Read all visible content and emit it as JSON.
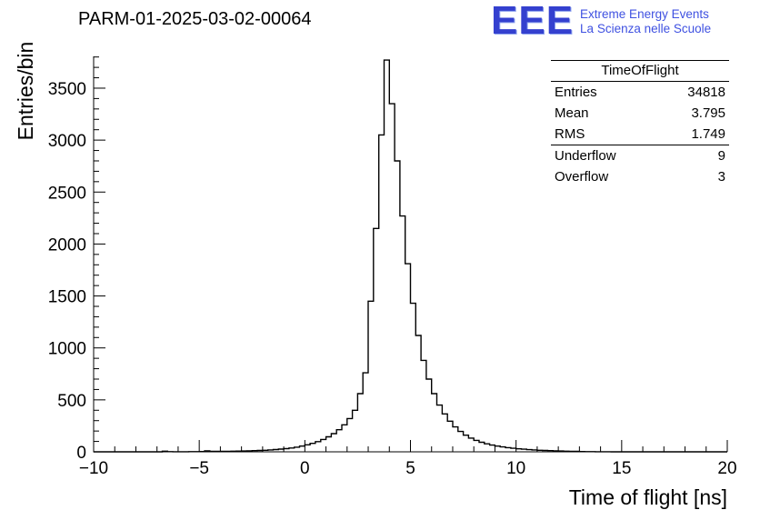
{
  "header": {
    "title": "PARM-01-2025-03-02-00064"
  },
  "logo": {
    "text": "EEE",
    "line1": "Extreme Energy Events",
    "line2": "La Scienza nelle Scuole",
    "color": "#3f51e1"
  },
  "stats": {
    "title": "TimeOfFlight",
    "rows": [
      {
        "label": "Entries",
        "value": "34818"
      },
      {
        "label": "Mean",
        "value": "3.795"
      },
      {
        "label": "RMS",
        "value": "1.749"
      },
      {
        "label": "Underflow",
        "value": "9"
      },
      {
        "label": "Overflow",
        "value": "3"
      }
    ]
  },
  "chart_data": {
    "type": "bar",
    "style": "step-histogram",
    "title": "PARM-01-2025-03-02-00064",
    "xlabel": "Time of flight [ns]",
    "ylabel": "Entries/bin",
    "xlim": [
      -10,
      20
    ],
    "ylim": [
      0,
      3806
    ],
    "bin_width": 0.25,
    "grid": false,
    "line_color": "#000000",
    "x_ticks": {
      "values": [
        -10,
        -5,
        0,
        5,
        10,
        15,
        20
      ],
      "labels": [
        "−10",
        "−5",
        "0",
        "5",
        "10",
        "15",
        "20"
      ]
    },
    "y_ticks": {
      "values": [
        0,
        500,
        1000,
        1500,
        2000,
        2500,
        3000,
        3500
      ],
      "labels": [
        "0",
        "500",
        "1000",
        "1500",
        "2000",
        "2500",
        "3000",
        "3500"
      ]
    },
    "x_minor_step": 1,
    "y_minor_step": 100,
    "counts": [
      0,
      0,
      0,
      0,
      0,
      0,
      0,
      0,
      0,
      0,
      0,
      0,
      0,
      6,
      2,
      1,
      1,
      1,
      2,
      2,
      3,
      9,
      4,
      4,
      5,
      5,
      6,
      7,
      8,
      9,
      11,
      13,
      15,
      18,
      22,
      26,
      31,
      37,
      45,
      55,
      67,
      81,
      98,
      119,
      144,
      175,
      213,
      260,
      320,
      400,
      560,
      760,
      1450,
      2150,
      3050,
      3770,
      3350,
      2800,
      2270,
      1810,
      1430,
      1120,
      880,
      700,
      560,
      450,
      365,
      295,
      240,
      196,
      160,
      132,
      110,
      92,
      77,
      65,
      55,
      47,
      40,
      34,
      29,
      25,
      21,
      18,
      15,
      13,
      11,
      9,
      8,
      6,
      5,
      4,
      3,
      2,
      2,
      1,
      1,
      1,
      0,
      0,
      0,
      0,
      0,
      0,
      0,
      0,
      0,
      0,
      0,
      0,
      0,
      0,
      0,
      0,
      0,
      0,
      0,
      0,
      0,
      0
    ]
  }
}
